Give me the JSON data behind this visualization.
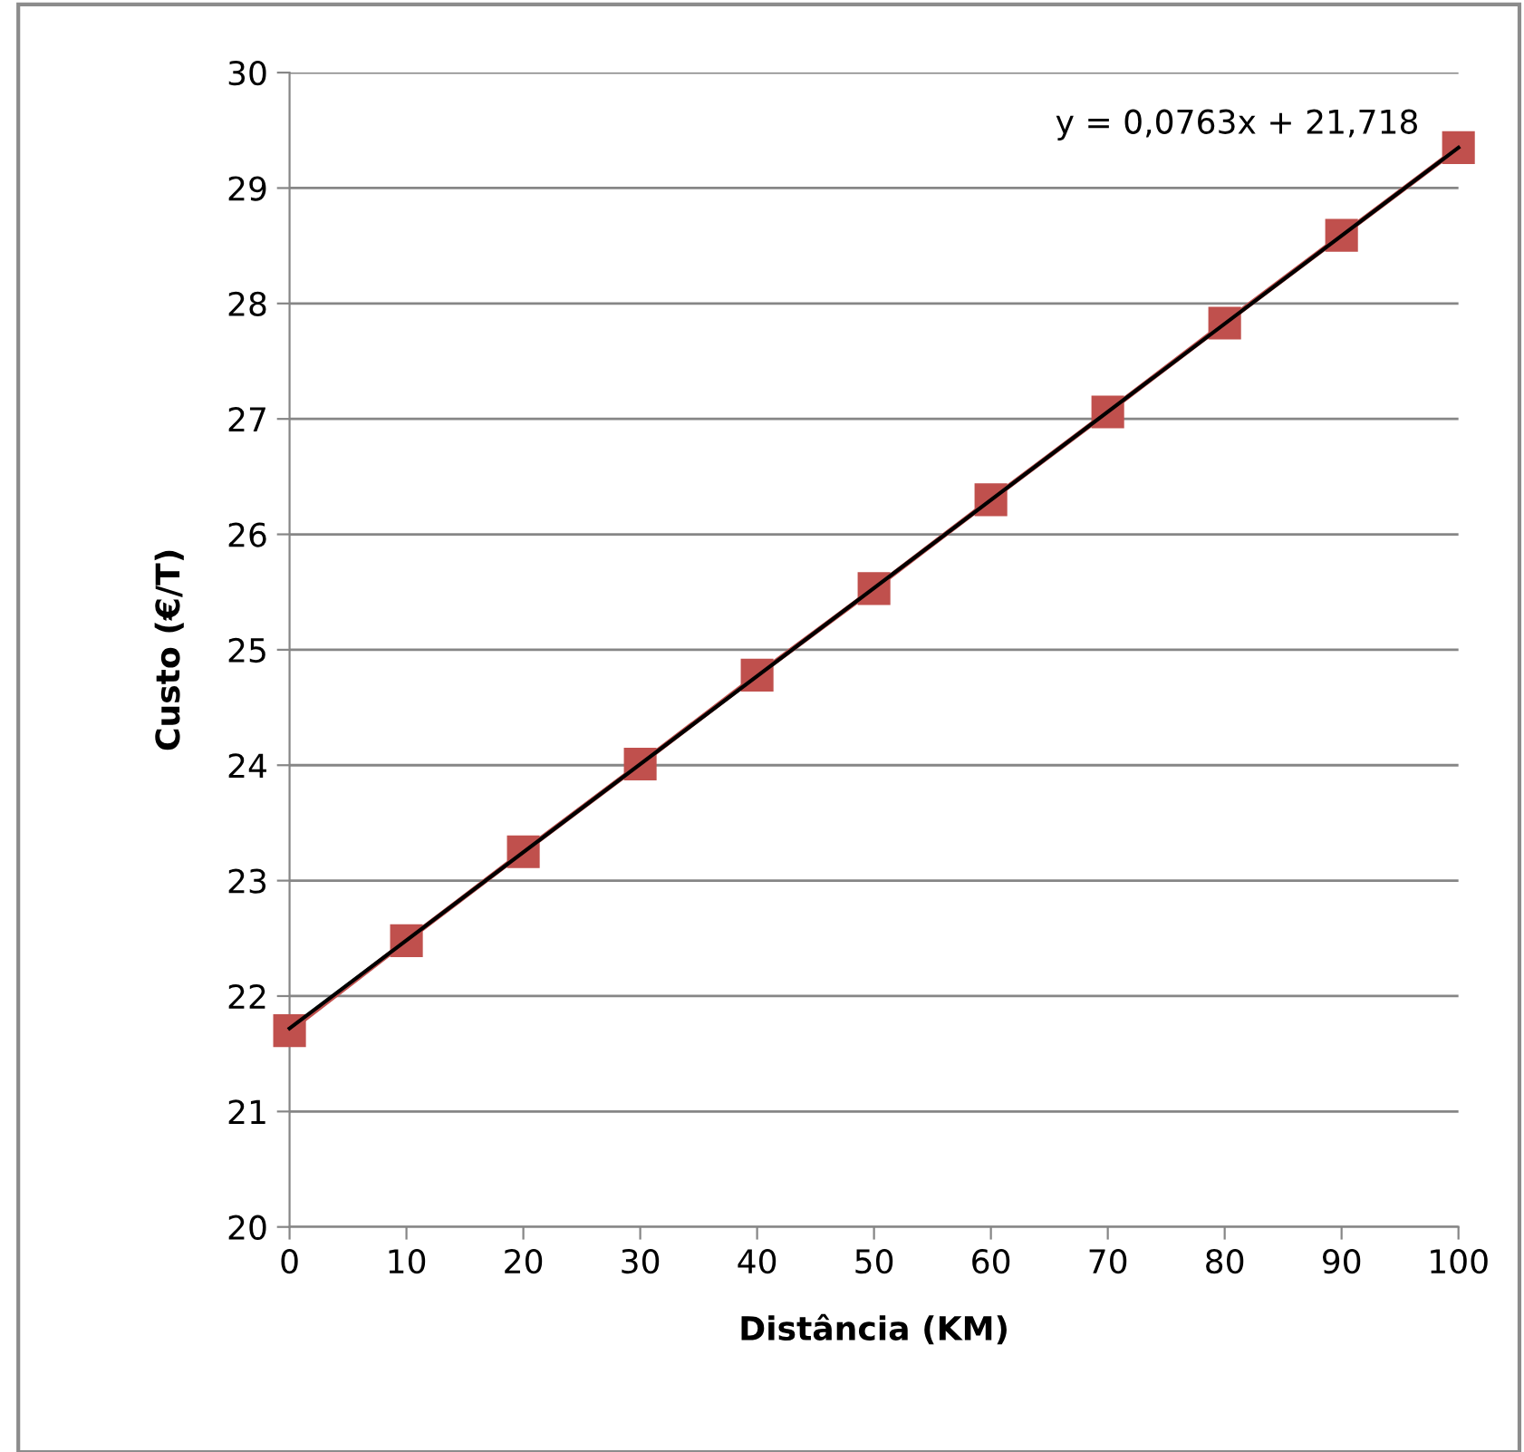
{
  "chart_data": {
    "type": "line",
    "xlabel": "Distância (KM)",
    "ylabel": "Custo (€/T)",
    "x": [
      0,
      10,
      20,
      30,
      40,
      50,
      60,
      70,
      80,
      90,
      100
    ],
    "series": [
      {
        "color": "#c0504d",
        "marker": "square",
        "values": [
          21.7,
          22.48,
          23.25,
          24.01,
          24.78,
          25.53,
          26.3,
          27.06,
          27.83,
          28.59,
          29.35
        ]
      },
      {
        "color": "#000000",
        "marker": "none",
        "x": [
          0,
          100
        ],
        "values": [
          21.72,
          29.35
        ]
      }
    ],
    "annotations": [
      "y = 0,0763x + 21,718"
    ],
    "xlim": [
      0,
      100
    ],
    "xticks": [
      0,
      10,
      20,
      30,
      40,
      50,
      60,
      70,
      80,
      90,
      100
    ],
    "ylim": [
      20,
      30
    ],
    "yticks": [
      20,
      21,
      22,
      23,
      24,
      25,
      26,
      27,
      28,
      29,
      30
    ],
    "grid": "y",
    "line_style": "solid"
  }
}
